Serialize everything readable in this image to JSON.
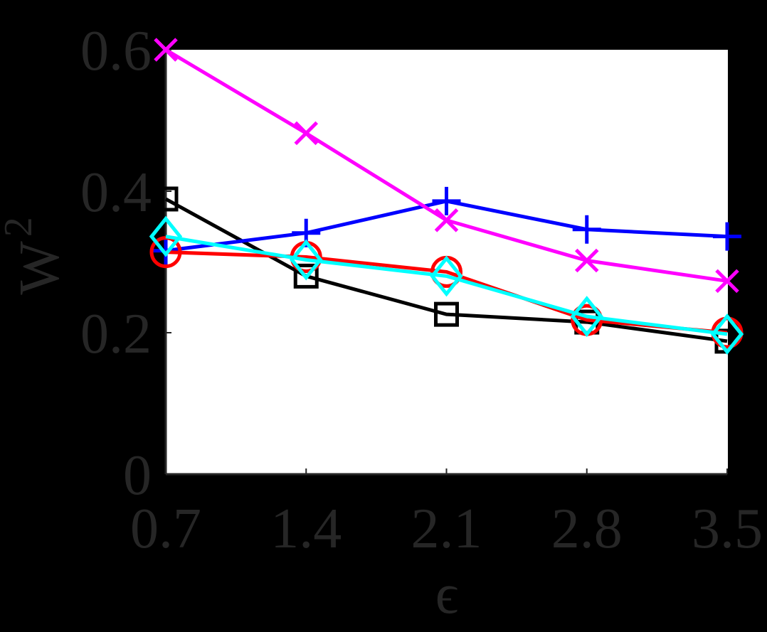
{
  "chart_data": {
    "type": "line",
    "title": "",
    "xlabel": "ϵ",
    "ylabel": "W",
    "ylabel_subscript": "2",
    "x": [
      0.7,
      1.4,
      2.1,
      2.8,
      3.5
    ],
    "xticks": [
      "0.7",
      "1.4",
      "2.1",
      "2.8",
      "3.5"
    ],
    "yticks": [
      "0",
      "0.2",
      "0.4",
      "0.6"
    ],
    "ylim": [
      0,
      0.6
    ],
    "xlim": [
      0.7,
      3.5
    ],
    "grid": false,
    "legend": null,
    "series": [
      {
        "name": "magenta-x",
        "color": "#FF00FF",
        "marker": "x",
        "values": [
          0.6,
          0.482,
          0.359,
          0.302,
          0.273
        ]
      },
      {
        "name": "blue-plus",
        "color": "#0000FF",
        "marker": "+",
        "values": [
          0.316,
          0.341,
          0.386,
          0.346,
          0.336
        ]
      },
      {
        "name": "black-square",
        "color": "#000000",
        "marker": "square",
        "values": [
          0.389,
          0.28,
          0.226,
          0.215,
          0.188
        ]
      },
      {
        "name": "red-circle",
        "color": "#FF0000",
        "marker": "circle",
        "values": [
          0.314,
          0.307,
          0.286,
          0.218,
          0.2
        ]
      },
      {
        "name": "cyan-diamond",
        "color": "#00FFFF",
        "marker": "diamond",
        "values": [
          0.336,
          0.303,
          0.28,
          0.223,
          0.198
        ]
      }
    ]
  }
}
